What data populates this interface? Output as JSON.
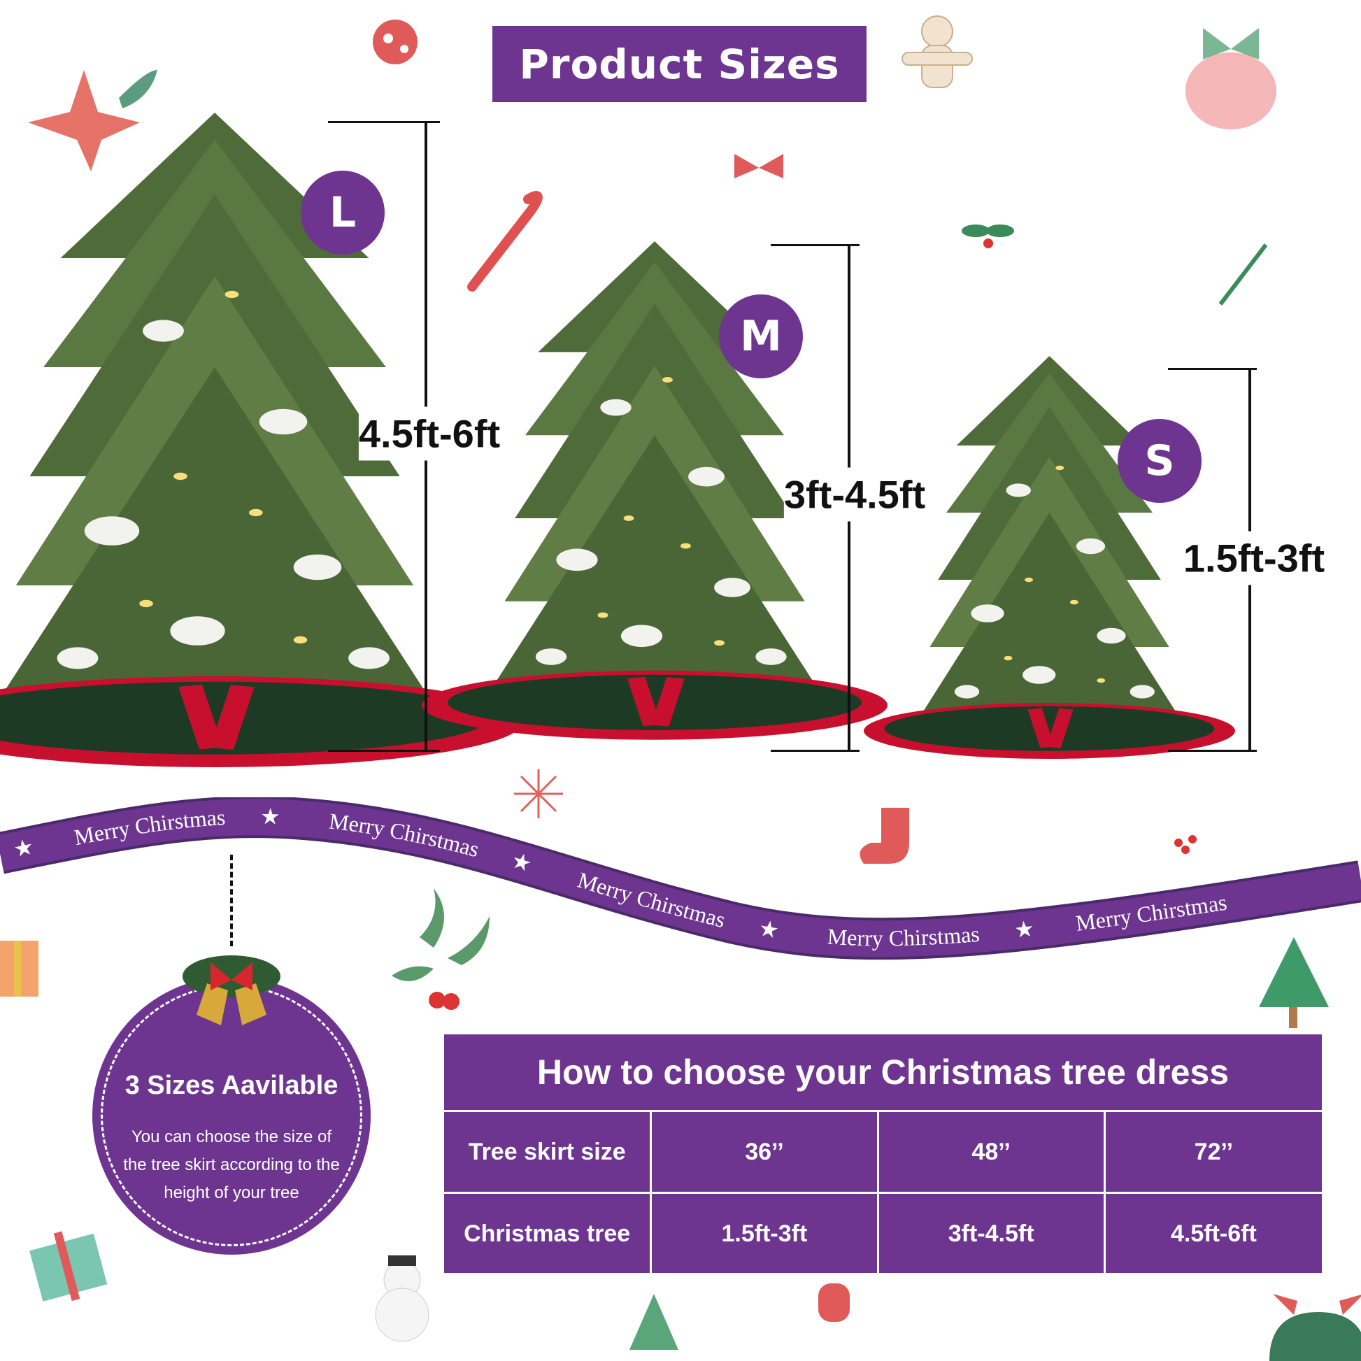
{
  "title": "Product Sizes",
  "sizes": [
    {
      "badge": "L",
      "height_range": "4.5ft-6ft"
    },
    {
      "badge": "M",
      "height_range": "3ft-4.5ft"
    },
    {
      "badge": "S",
      "height_range": "1.5ft-3ft"
    }
  ],
  "ribbon": {
    "text": "Merry Chirstmas",
    "star_icon": "star"
  },
  "info_circle": {
    "heading": "3 Sizes Aavilable",
    "body": "You can choose the size of the tree skirt according to the height of your tree"
  },
  "size_table": {
    "title": "How to choose your Christmas tree dress",
    "rows": [
      {
        "label": "Tree skirt size",
        "values": [
          "36’’",
          "48’’",
          "72’’"
        ]
      },
      {
        "label": "Christmas tree",
        "values": [
          "1.5ft-3ft",
          "3ft-4.5ft",
          "4.5ft-6ft"
        ]
      }
    ]
  },
  "colors": {
    "purple": "#6d3590",
    "ribbon_edge": "#4a2a6a",
    "tree_green": "#4f6b3a",
    "skirt_red": "#c8102e",
    "skirt_green": "#1d3a24"
  }
}
